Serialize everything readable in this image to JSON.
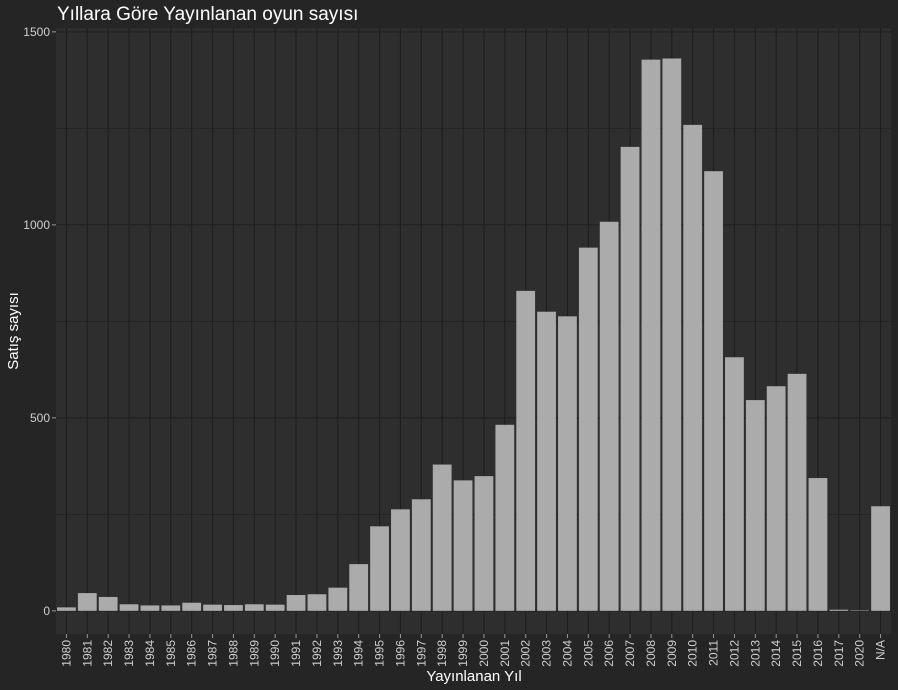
{
  "chart_data": {
    "type": "bar",
    "title": "Yıllara Göre Yayınlanan oyun sayısı",
    "xlabel": "Yayınlanan Yıl",
    "ylabel": "Satış sayısı",
    "ylim": [
      -60,
      1510
    ],
    "yticks": [
      0,
      500,
      1000,
      1500
    ],
    "categories": [
      "1980",
      "1981",
      "1982",
      "1983",
      "1984",
      "1985",
      "1986",
      "1987",
      "1988",
      "1989",
      "1990",
      "1991",
      "1992",
      "1993",
      "1994",
      "1995",
      "1996",
      "1997",
      "1998",
      "1999",
      "2000",
      "2001",
      "2002",
      "2003",
      "2004",
      "2005",
      "2006",
      "2007",
      "2008",
      "2009",
      "2010",
      "2011",
      "2012",
      "2013",
      "2014",
      "2015",
      "2016",
      "2017",
      "2020",
      "N/A"
    ],
    "values": [
      9,
      46,
      36,
      17,
      14,
      14,
      21,
      16,
      15,
      17,
      16,
      41,
      43,
      60,
      121,
      219,
      263,
      289,
      379,
      338,
      349,
      482,
      829,
      775,
      763,
      941,
      1008,
      1202,
      1428,
      1431,
      1259,
      1139,
      657,
      546,
      582,
      614,
      344,
      3,
      1,
      271
    ],
    "colors": {
      "background": "#252525",
      "panel": "#2e2e2e",
      "bar": "#ababab",
      "grid": "#1e1e1e"
    }
  }
}
